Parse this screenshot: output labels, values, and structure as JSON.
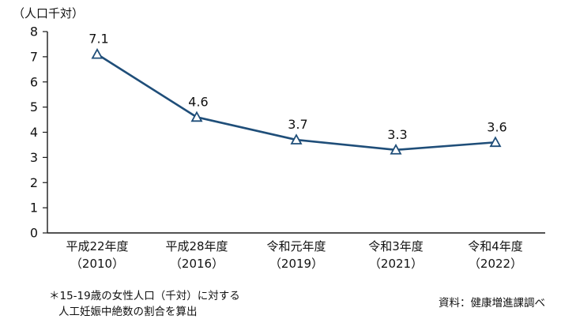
{
  "chart_data": {
    "type": "line",
    "title": "",
    "unit_label": "（人口千対）",
    "categories": [
      {
        "era": "平成22年度",
        "year": "（2010）"
      },
      {
        "era": "平成28年度",
        "year": "（2016）"
      },
      {
        "era": "令和元年度",
        "year": "（2019）"
      },
      {
        "era": "令和3年度",
        "year": "（2021）"
      },
      {
        "era": "令和4年度",
        "year": "（2022）"
      }
    ],
    "values": [
      7.1,
      4.6,
      3.7,
      3.3,
      3.6
    ],
    "ylim": [
      0,
      8
    ],
    "ytick_step": 1,
    "ytick_labels": [
      "0",
      "1",
      "2",
      "3",
      "4",
      "5",
      "6",
      "7",
      "8"
    ],
    "grid": false,
    "legend_position": "none",
    "line_color": "#1f4e79",
    "marker": "triangle-up-hollow",
    "marker_fill": "#ffffff",
    "axis_color": "#1a1a1a",
    "label_color": "#111111"
  },
  "footnote": {
    "line1": "＊15-19歳の女性人口（千対）に対する",
    "line2": "人工妊娠中絶数の割合を算出"
  },
  "source": "資料：健康増進課調べ"
}
